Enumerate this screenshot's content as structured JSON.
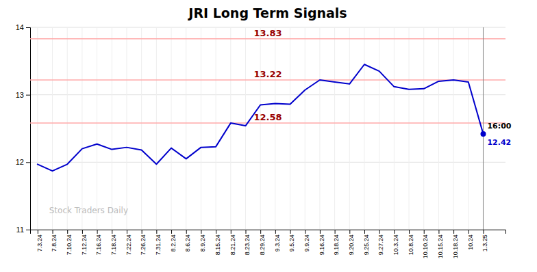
{
  "chart_data": {
    "type": "line",
    "title": "JRI Long Term Signals",
    "categories": [
      "7.3.24",
      "7.8.24",
      "7.10.24",
      "7.12.24",
      "7.16.24",
      "7.18.24",
      "7.22.24",
      "7.26.24",
      "7.31.24",
      "8.2.24",
      "8.6.24",
      "8.9.24",
      "8.15.24",
      "8.21.24",
      "8.23.24",
      "8.29.24",
      "9.3.24",
      "9.5.24",
      "9.9.24",
      "9.16.24",
      "9.18.24",
      "9.20.24",
      "9.25.24",
      "9.27.24",
      "10.3.24",
      "10.8.24",
      "10.10.24",
      "10.15.24",
      "10.18.24",
      "10.24",
      "1.3.25"
    ],
    "values": [
      11.97,
      11.87,
      11.97,
      12.2,
      12.27,
      12.19,
      12.22,
      12.18,
      11.97,
      12.21,
      12.05,
      12.22,
      12.23,
      12.58,
      12.54,
      12.85,
      12.87,
      12.86,
      13.07,
      13.22,
      13.19,
      13.16,
      13.45,
      13.35,
      13.12,
      13.08,
      13.09,
      13.2,
      13.22,
      13.19,
      12.42
    ],
    "color": "#0000cc",
    "hlines": [
      13.83,
      13.22,
      12.58
    ],
    "annotation": "16:00",
    "watermark": "Stock Traders Daily",
    "ylim": [
      11,
      14
    ],
    "yticks": [
      11,
      12,
      13,
      14
    ],
    "grid": true
  }
}
